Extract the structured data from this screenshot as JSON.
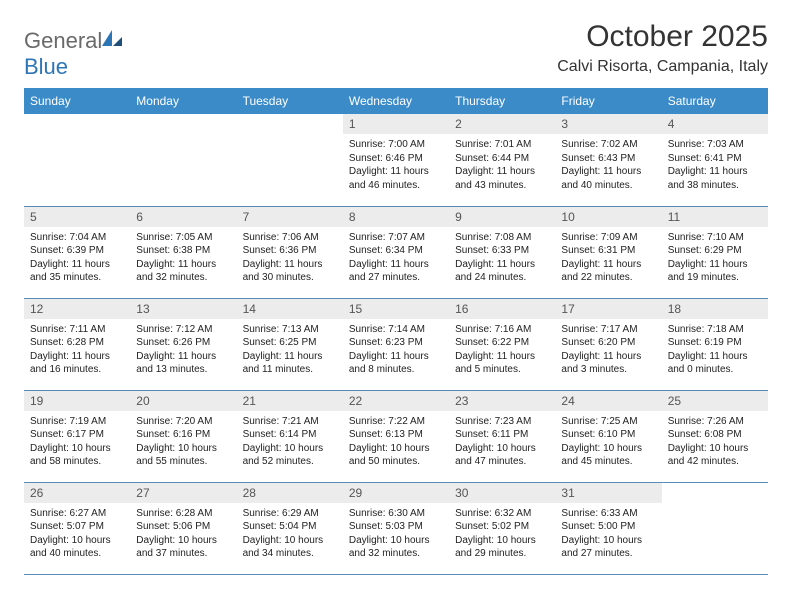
{
  "logo": {
    "word1": "General",
    "word2": "Blue"
  },
  "title": "October 2025",
  "location": "Calvi Risorta, Campania, Italy",
  "colors": {
    "header_bg": "#3b8bc9",
    "header_fg": "#ffffff",
    "daynum_bg": "#ececec",
    "row_border": "#5b8bb8",
    "logo_gray": "#6a6a6a",
    "logo_blue": "#2e75b6"
  },
  "weekdays": [
    "Sunday",
    "Monday",
    "Tuesday",
    "Wednesday",
    "Thursday",
    "Friday",
    "Saturday"
  ],
  "weeks": [
    [
      {
        "day": "",
        "sunrise": "",
        "sunset": "",
        "daylight1": "",
        "daylight2": ""
      },
      {
        "day": "",
        "sunrise": "",
        "sunset": "",
        "daylight1": "",
        "daylight2": ""
      },
      {
        "day": "",
        "sunrise": "",
        "sunset": "",
        "daylight1": "",
        "daylight2": ""
      },
      {
        "day": "1",
        "sunrise": "Sunrise: 7:00 AM",
        "sunset": "Sunset: 6:46 PM",
        "daylight1": "Daylight: 11 hours",
        "daylight2": "and 46 minutes."
      },
      {
        "day": "2",
        "sunrise": "Sunrise: 7:01 AM",
        "sunset": "Sunset: 6:44 PM",
        "daylight1": "Daylight: 11 hours",
        "daylight2": "and 43 minutes."
      },
      {
        "day": "3",
        "sunrise": "Sunrise: 7:02 AM",
        "sunset": "Sunset: 6:43 PM",
        "daylight1": "Daylight: 11 hours",
        "daylight2": "and 40 minutes."
      },
      {
        "day": "4",
        "sunrise": "Sunrise: 7:03 AM",
        "sunset": "Sunset: 6:41 PM",
        "daylight1": "Daylight: 11 hours",
        "daylight2": "and 38 minutes."
      }
    ],
    [
      {
        "day": "5",
        "sunrise": "Sunrise: 7:04 AM",
        "sunset": "Sunset: 6:39 PM",
        "daylight1": "Daylight: 11 hours",
        "daylight2": "and 35 minutes."
      },
      {
        "day": "6",
        "sunrise": "Sunrise: 7:05 AM",
        "sunset": "Sunset: 6:38 PM",
        "daylight1": "Daylight: 11 hours",
        "daylight2": "and 32 minutes."
      },
      {
        "day": "7",
        "sunrise": "Sunrise: 7:06 AM",
        "sunset": "Sunset: 6:36 PM",
        "daylight1": "Daylight: 11 hours",
        "daylight2": "and 30 minutes."
      },
      {
        "day": "8",
        "sunrise": "Sunrise: 7:07 AM",
        "sunset": "Sunset: 6:34 PM",
        "daylight1": "Daylight: 11 hours",
        "daylight2": "and 27 minutes."
      },
      {
        "day": "9",
        "sunrise": "Sunrise: 7:08 AM",
        "sunset": "Sunset: 6:33 PM",
        "daylight1": "Daylight: 11 hours",
        "daylight2": "and 24 minutes."
      },
      {
        "day": "10",
        "sunrise": "Sunrise: 7:09 AM",
        "sunset": "Sunset: 6:31 PM",
        "daylight1": "Daylight: 11 hours",
        "daylight2": "and 22 minutes."
      },
      {
        "day": "11",
        "sunrise": "Sunrise: 7:10 AM",
        "sunset": "Sunset: 6:29 PM",
        "daylight1": "Daylight: 11 hours",
        "daylight2": "and 19 minutes."
      }
    ],
    [
      {
        "day": "12",
        "sunrise": "Sunrise: 7:11 AM",
        "sunset": "Sunset: 6:28 PM",
        "daylight1": "Daylight: 11 hours",
        "daylight2": "and 16 minutes."
      },
      {
        "day": "13",
        "sunrise": "Sunrise: 7:12 AM",
        "sunset": "Sunset: 6:26 PM",
        "daylight1": "Daylight: 11 hours",
        "daylight2": "and 13 minutes."
      },
      {
        "day": "14",
        "sunrise": "Sunrise: 7:13 AM",
        "sunset": "Sunset: 6:25 PM",
        "daylight1": "Daylight: 11 hours",
        "daylight2": "and 11 minutes."
      },
      {
        "day": "15",
        "sunrise": "Sunrise: 7:14 AM",
        "sunset": "Sunset: 6:23 PM",
        "daylight1": "Daylight: 11 hours",
        "daylight2": "and 8 minutes."
      },
      {
        "day": "16",
        "sunrise": "Sunrise: 7:16 AM",
        "sunset": "Sunset: 6:22 PM",
        "daylight1": "Daylight: 11 hours",
        "daylight2": "and 5 minutes."
      },
      {
        "day": "17",
        "sunrise": "Sunrise: 7:17 AM",
        "sunset": "Sunset: 6:20 PM",
        "daylight1": "Daylight: 11 hours",
        "daylight2": "and 3 minutes."
      },
      {
        "day": "18",
        "sunrise": "Sunrise: 7:18 AM",
        "sunset": "Sunset: 6:19 PM",
        "daylight1": "Daylight: 11 hours",
        "daylight2": "and 0 minutes."
      }
    ],
    [
      {
        "day": "19",
        "sunrise": "Sunrise: 7:19 AM",
        "sunset": "Sunset: 6:17 PM",
        "daylight1": "Daylight: 10 hours",
        "daylight2": "and 58 minutes."
      },
      {
        "day": "20",
        "sunrise": "Sunrise: 7:20 AM",
        "sunset": "Sunset: 6:16 PM",
        "daylight1": "Daylight: 10 hours",
        "daylight2": "and 55 minutes."
      },
      {
        "day": "21",
        "sunrise": "Sunrise: 7:21 AM",
        "sunset": "Sunset: 6:14 PM",
        "daylight1": "Daylight: 10 hours",
        "daylight2": "and 52 minutes."
      },
      {
        "day": "22",
        "sunrise": "Sunrise: 7:22 AM",
        "sunset": "Sunset: 6:13 PM",
        "daylight1": "Daylight: 10 hours",
        "daylight2": "and 50 minutes."
      },
      {
        "day": "23",
        "sunrise": "Sunrise: 7:23 AM",
        "sunset": "Sunset: 6:11 PM",
        "daylight1": "Daylight: 10 hours",
        "daylight2": "and 47 minutes."
      },
      {
        "day": "24",
        "sunrise": "Sunrise: 7:25 AM",
        "sunset": "Sunset: 6:10 PM",
        "daylight1": "Daylight: 10 hours",
        "daylight2": "and 45 minutes."
      },
      {
        "day": "25",
        "sunrise": "Sunrise: 7:26 AM",
        "sunset": "Sunset: 6:08 PM",
        "daylight1": "Daylight: 10 hours",
        "daylight2": "and 42 minutes."
      }
    ],
    [
      {
        "day": "26",
        "sunrise": "Sunrise: 6:27 AM",
        "sunset": "Sunset: 5:07 PM",
        "daylight1": "Daylight: 10 hours",
        "daylight2": "and 40 minutes."
      },
      {
        "day": "27",
        "sunrise": "Sunrise: 6:28 AM",
        "sunset": "Sunset: 5:06 PM",
        "daylight1": "Daylight: 10 hours",
        "daylight2": "and 37 minutes."
      },
      {
        "day": "28",
        "sunrise": "Sunrise: 6:29 AM",
        "sunset": "Sunset: 5:04 PM",
        "daylight1": "Daylight: 10 hours",
        "daylight2": "and 34 minutes."
      },
      {
        "day": "29",
        "sunrise": "Sunrise: 6:30 AM",
        "sunset": "Sunset: 5:03 PM",
        "daylight1": "Daylight: 10 hours",
        "daylight2": "and 32 minutes."
      },
      {
        "day": "30",
        "sunrise": "Sunrise: 6:32 AM",
        "sunset": "Sunset: 5:02 PM",
        "daylight1": "Daylight: 10 hours",
        "daylight2": "and 29 minutes."
      },
      {
        "day": "31",
        "sunrise": "Sunrise: 6:33 AM",
        "sunset": "Sunset: 5:00 PM",
        "daylight1": "Daylight: 10 hours",
        "daylight2": "and 27 minutes."
      },
      {
        "day": "",
        "sunrise": "",
        "sunset": "",
        "daylight1": "",
        "daylight2": ""
      }
    ]
  ]
}
